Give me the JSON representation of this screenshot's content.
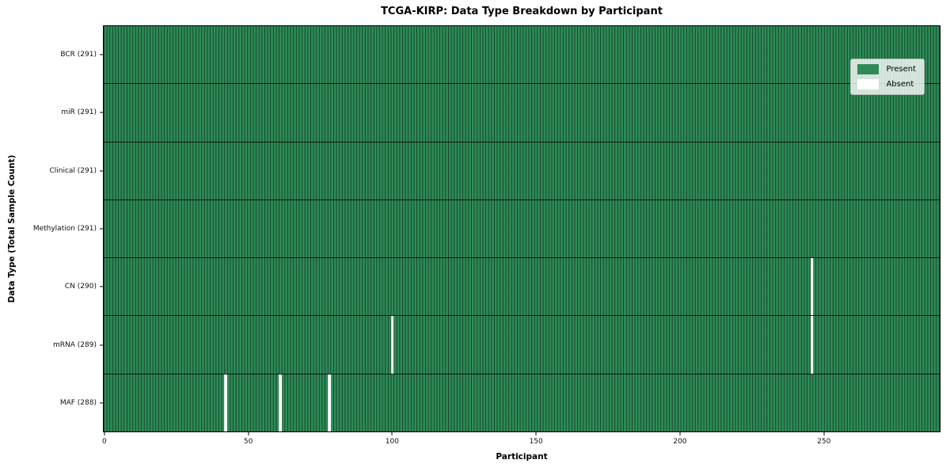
{
  "title": "TCGA-KIRP: Data Type Breakdown by Participant",
  "chart_data": {
    "type": "heatmap",
    "title": "TCGA-KIRP: Data Type Breakdown by Participant",
    "xlabel": "Participant",
    "ylabel": "Data Type (Total Sample Count)",
    "n_participants": 291,
    "x_range": [
      0,
      290
    ],
    "x_ticks": [
      0,
      50,
      100,
      150,
      200,
      250
    ],
    "grid": "row-and-column cell edges",
    "rows": [
      {
        "name": "BCR",
        "label": "BCR (291)",
        "total": 291,
        "absent_participants": []
      },
      {
        "name": "miR",
        "label": "miR (291)",
        "total": 291,
        "absent_participants": []
      },
      {
        "name": "Clinical",
        "label": "Clinical (291)",
        "total": 291,
        "absent_participants": []
      },
      {
        "name": "Methylation",
        "label": "Methylation (291)",
        "total": 291,
        "absent_participants": []
      },
      {
        "name": "CN",
        "label": "CN (290)",
        "total": 290,
        "absent_participants": [
          246
        ]
      },
      {
        "name": "mRNA",
        "label": "mRNA (289)",
        "total": 289,
        "absent_participants": [
          100,
          246
        ]
      },
      {
        "name": "MAF",
        "label": "MAF (288)",
        "total": 288,
        "absent_participants": [
          42,
          61,
          78
        ]
      }
    ],
    "legend": {
      "position": "upper right",
      "entries": [
        {
          "label": "Present",
          "color": "#2e8b57"
        },
        {
          "label": "Absent",
          "color": "#ffffff"
        }
      ]
    },
    "colors": {
      "present": "#2e8b57",
      "absent": "#ffffff",
      "cell_edge": "#0b2214",
      "row_divider": "#000000",
      "spine": "#000000"
    }
  }
}
